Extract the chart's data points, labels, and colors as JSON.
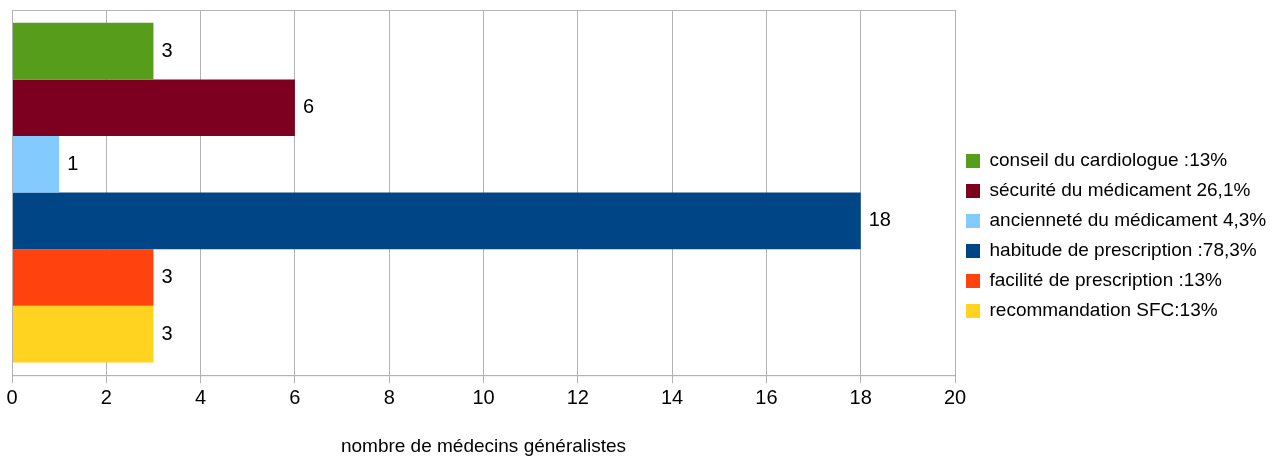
{
  "chart_data": {
    "type": "bar",
    "orientation": "horizontal",
    "xlabel": "nombre de médecins généralistes",
    "categories": [
      null
    ],
    "series": [
      {
        "name": "conseil du cardiologue :13%",
        "color": "#579d1c",
        "values": [
          3
        ]
      },
      {
        "name": "sécurité du médicament 26,1%",
        "color": "#7e0021",
        "values": [
          6
        ]
      },
      {
        "name": "ancienneté du médicament 4,3%",
        "color": "#83caff",
        "values": [
          1
        ]
      },
      {
        "name": "habitude de prescription :78,3%",
        "color": "#004586",
        "values": [
          18
        ]
      },
      {
        "name": "facilité de prescription :13%",
        "color": "#ff420e",
        "values": [
          3
        ]
      },
      {
        "name": "recommandation SFC:13%",
        "color": "#ffd320",
        "values": [
          3
        ]
      }
    ],
    "xlim": [
      0,
      20
    ],
    "xticks": [
      0,
      2,
      4,
      6,
      8,
      10,
      12,
      14,
      16,
      18,
      20
    ],
    "grid": "x",
    "legend": "right",
    "data_labels": true,
    "tick_labels": "x"
  }
}
